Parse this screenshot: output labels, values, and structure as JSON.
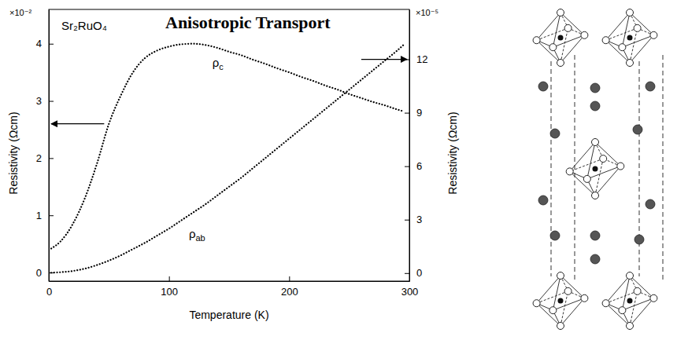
{
  "chart_data": {
    "type": "line",
    "title": "Anisotropic Transport",
    "annotations": [
      "Sr₂RuO₄",
      "×10⁻²",
      "×10⁻⁵"
    ],
    "x_label": "Temperature (K)",
    "y_label": "Resistivity (Ωcm)",
    "y2_label": "Resistivity (Ωcm)",
    "x": [
      2,
      10,
      20,
      30,
      40,
      50,
      60,
      70,
      80,
      90,
      100,
      110,
      120,
      130,
      140,
      150,
      160,
      170,
      180,
      190,
      200,
      210,
      220,
      230,
      240,
      250,
      260,
      270,
      280,
      290,
      295
    ],
    "xlim": [
      0,
      300
    ],
    "xticks": [
      0,
      100,
      200,
      300
    ],
    "ylim": [
      -0.15,
      4.6
    ],
    "yticks": [
      0,
      1,
      2,
      3,
      4
    ],
    "y2lim": [
      -0.45,
      14.8
    ],
    "y2ticks": [
      0,
      3,
      6,
      9,
      12
    ],
    "series": [
      {
        "name": "ρc",
        "color": "#000000",
        "line_style": "dotted",
        "values": [
          0.42,
          0.55,
          0.85,
          1.3,
          1.9,
          2.6,
          3.1,
          3.5,
          3.75,
          3.88,
          3.95,
          3.99,
          4.0,
          3.98,
          3.93,
          3.86,
          3.8,
          3.72,
          3.65,
          3.57,
          3.5,
          3.42,
          3.35,
          3.27,
          3.2,
          3.12,
          3.05,
          2.98,
          2.92,
          2.85,
          2.82
        ]
      },
      {
        "name": "ρab",
        "color": "#000000",
        "line_style": "dotted",
        "axis": "y2",
        "values": [
          0.02,
          0.05,
          0.12,
          0.25,
          0.45,
          0.7,
          1.0,
          1.35,
          1.7,
          2.1,
          2.5,
          2.95,
          3.4,
          3.85,
          4.35,
          4.85,
          5.35,
          5.9,
          6.45,
          7.0,
          7.55,
          8.1,
          8.65,
          9.2,
          9.75,
          10.3,
          10.85,
          11.4,
          11.95,
          12.5,
          12.8
        ]
      }
    ]
  }
}
